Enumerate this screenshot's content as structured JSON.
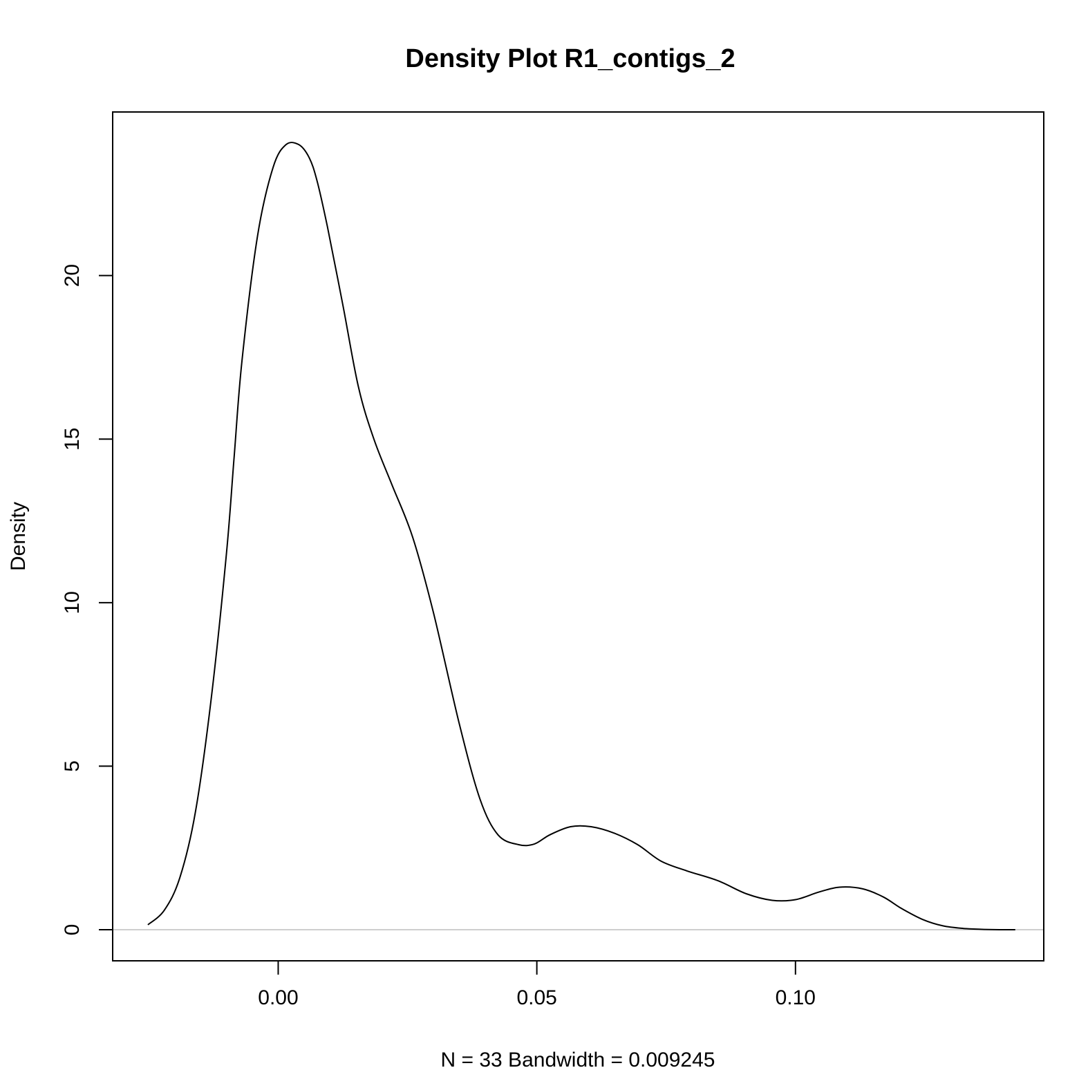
{
  "chart_data": {
    "type": "line",
    "title": "Density Plot R1_contigs_2",
    "xlabel": "N = 33   Bandwidth = 0.009245",
    "ylabel": "Density",
    "xlim": [
      -0.032,
      0.148
    ],
    "ylim": [
      -0.95,
      25.0
    ],
    "x_ticks": [
      0.0,
      0.05,
      0.1
    ],
    "x_tick_labels": [
      "0.00",
      "0.05",
      "0.10"
    ],
    "y_ticks": [
      0,
      5,
      10,
      15,
      20
    ],
    "y_tick_labels": [
      "0",
      "5",
      "10",
      "15",
      "20"
    ],
    "grid": false,
    "baseline": 0,
    "series": [
      {
        "x": [
          -0.0252,
          -0.022,
          -0.019,
          -0.016,
          -0.013,
          -0.01,
          -0.0085,
          -0.007,
          -0.004,
          -0.001,
          0.0015,
          0.004,
          0.006,
          0.0075,
          0.0095,
          0.0125,
          0.0155,
          0.0185,
          0.022,
          0.026,
          0.03,
          0.035,
          0.039,
          0.0425,
          0.0465,
          0.0495,
          0.0525,
          0.0565,
          0.0605,
          0.065,
          0.0695,
          0.074,
          0.079,
          0.085,
          0.0905,
          0.0955,
          0.1,
          0.1045,
          0.1085,
          0.113,
          0.117,
          0.1205,
          0.1245,
          0.1285,
          0.1325,
          0.1365,
          0.1405,
          0.1425
        ],
        "y": [
          0.15,
          0.6,
          1.6,
          3.6,
          7.0,
          11.5,
          14.5,
          17.4,
          21.2,
          23.3,
          24.0,
          24.0,
          23.6,
          22.9,
          21.5,
          19.1,
          16.6,
          15.0,
          13.6,
          12.0,
          9.7,
          6.3,
          4.0,
          2.9,
          2.6,
          2.62,
          2.9,
          3.15,
          3.15,
          2.95,
          2.6,
          2.1,
          1.8,
          1.5,
          1.1,
          0.9,
          0.92,
          1.15,
          1.3,
          1.25,
          1.0,
          0.65,
          0.32,
          0.12,
          0.04,
          0.01,
          0.0,
          0.0
        ]
      }
    ]
  }
}
